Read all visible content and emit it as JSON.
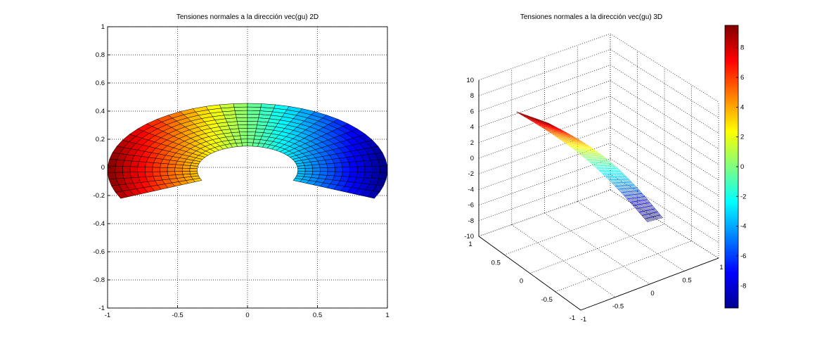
{
  "chart_data": [
    {
      "type": "heatmap",
      "title": "Tensiones normales a la dirección vec(gu) 2D",
      "xlim": [
        -1,
        1
      ],
      "ylim": [
        -1,
        1
      ],
      "xticks": [
        "-1",
        "-0.5",
        "0",
        "0.5",
        "1"
      ],
      "yticks": [
        "1",
        "0.8",
        "0.6",
        "0.4",
        "0.2",
        "0",
        "-0.2",
        "-0.4",
        "-0.6",
        "-0.8",
        "-1"
      ],
      "grid": true,
      "mesh": {
        "shape": "annular sector",
        "inner_radius": 0.18,
        "outer_radius": 0.5,
        "center": [
          0,
          -0.02
        ],
        "angle_start_deg": 205,
        "angle_end_deg": 335,
        "radial_divisions": 12,
        "angular_divisions": 40
      },
      "color_range": [
        -9.5,
        9.5
      ],
      "colormap": "jet"
    },
    {
      "type": "surface",
      "title": "Tensiones normales a la dirección vec(gu) 3D",
      "xlim": [
        -1,
        1
      ],
      "ylim": [
        -1,
        1
      ],
      "zlim": [
        -10,
        10
      ],
      "xticks": [
        "-1",
        "-0.5",
        "0",
        "0.5",
        "1"
      ],
      "yticks": [
        "-1",
        "-0.5",
        "0",
        "0.5",
        "1"
      ],
      "zticks": [
        "10",
        "8",
        "6",
        "4",
        "2",
        "0",
        "-2",
        "-4",
        "-6",
        "-8",
        "-10"
      ],
      "grid": true,
      "style": "mesh",
      "colormap": "jet"
    }
  ],
  "colorbar": {
    "ticks": [
      "8",
      "6",
      "4",
      "2",
      "0",
      "-2",
      "-4",
      "-6",
      "-8"
    ],
    "range": [
      -9.5,
      9.5
    ]
  }
}
